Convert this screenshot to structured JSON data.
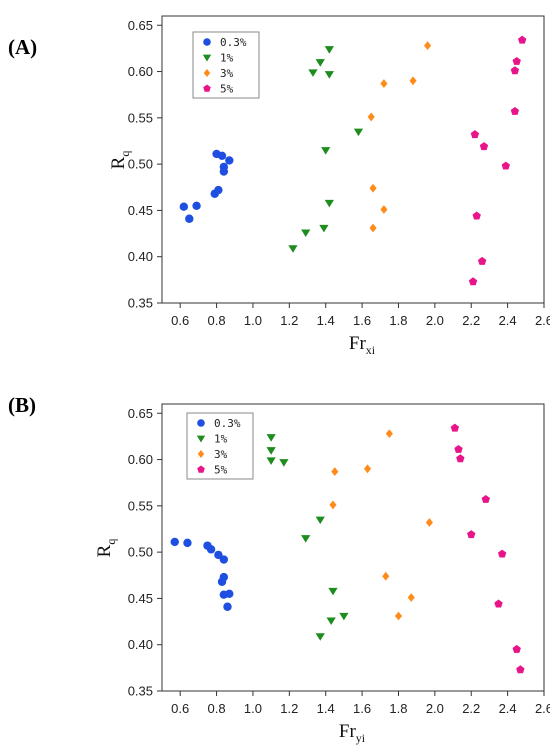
{
  "chart_data": [
    {
      "type": "scatter",
      "panel_label": "(A)",
      "ylabel": "R",
      "ylabel_sub": "q",
      "xlabel": "Fr",
      "xlabel_sub": "xi",
      "xlim": [
        0.5,
        2.6
      ],
      "ylim": [
        0.35,
        0.66
      ],
      "xticks": [
        0.6,
        0.8,
        1.0,
        1.2,
        1.4,
        1.6,
        1.8,
        2.0,
        2.2,
        2.4,
        2.6
      ],
      "xtick_labels": [
        "0.6",
        "0.8",
        "1.0",
        "1.2",
        "1.4",
        "1.6",
        "1.8",
        "2.0",
        "2.2",
        "2.4",
        "2.6"
      ],
      "yticks": [
        0.35,
        0.4,
        0.45,
        0.5,
        0.55,
        0.6,
        0.65
      ],
      "ytick_labels": [
        "0.35",
        "0.40",
        "0.45",
        "0.50",
        "0.55",
        "0.60",
        "0.65"
      ],
      "legend_position": "top-left",
      "series": [
        {
          "name": "0.3%",
          "marker": "circle",
          "color": "#1f4fe0",
          "points": [
            [
              0.62,
              0.454
            ],
            [
              0.65,
              0.441
            ],
            [
              0.69,
              0.455
            ],
            [
              0.79,
              0.468
            ],
            [
              0.81,
              0.472
            ],
            [
              0.8,
              0.511
            ],
            [
              0.83,
              0.509
            ],
            [
              0.84,
              0.497
            ],
            [
              0.84,
              0.492
            ],
            [
              0.87,
              0.504
            ]
          ]
        },
        {
          "name": "1%",
          "marker": "triangle-down",
          "color": "#1e8c1e",
          "points": [
            [
              1.22,
              0.409
            ],
            [
              1.29,
              0.426
            ],
            [
              1.39,
              0.431
            ],
            [
              1.42,
              0.458
            ],
            [
              1.4,
              0.515
            ],
            [
              1.58,
              0.535
            ],
            [
              1.33,
              0.599
            ],
            [
              1.37,
              0.61
            ],
            [
              1.42,
              0.597
            ],
            [
              1.42,
              0.624
            ]
          ]
        },
        {
          "name": "3%",
          "marker": "diamond",
          "color": "#ff8c1a",
          "points": [
            [
              1.66,
              0.431
            ],
            [
              1.72,
              0.451
            ],
            [
              1.66,
              0.474
            ],
            [
              1.65,
              0.551
            ],
            [
              1.72,
              0.587
            ],
            [
              1.88,
              0.59
            ],
            [
              1.96,
              0.628
            ]
          ]
        },
        {
          "name": "5%",
          "marker": "pentagon",
          "color": "#e8158a",
          "points": [
            [
              2.21,
              0.373
            ],
            [
              2.26,
              0.395
            ],
            [
              2.23,
              0.444
            ],
            [
              2.39,
              0.498
            ],
            [
              2.27,
              0.519
            ],
            [
              2.22,
              0.532
            ],
            [
              2.44,
              0.557
            ],
            [
              2.44,
              0.601
            ],
            [
              2.45,
              0.611
            ],
            [
              2.48,
              0.634
            ]
          ]
        }
      ]
    },
    {
      "type": "scatter",
      "panel_label": "(B)",
      "ylabel": "R",
      "ylabel_sub": "q",
      "xlabel": "Fr",
      "xlabel_sub": "yi",
      "xlim": [
        0.5,
        2.6
      ],
      "ylim": [
        0.35,
        0.66
      ],
      "xticks": [
        0.6,
        0.8,
        1.0,
        1.2,
        1.4,
        1.6,
        1.8,
        2.0,
        2.2,
        2.4,
        2.6
      ],
      "xtick_labels": [
        "0.6",
        "0.8",
        "1.0",
        "1.2",
        "1.4",
        "1.6",
        "1.8",
        "2.0",
        "2.2",
        "2.4",
        "2.6"
      ],
      "yticks": [
        0.35,
        0.4,
        0.45,
        0.5,
        0.55,
        0.6,
        0.65
      ],
      "ytick_labels": [
        "0.35",
        "0.40",
        "0.45",
        "0.50",
        "0.55",
        "0.60",
        "0.65"
      ],
      "legend_position": "top-left",
      "series": [
        {
          "name": "0.3%",
          "marker": "circle",
          "color": "#1f4fe0",
          "points": [
            [
              0.57,
              0.511
            ],
            [
              0.64,
              0.51
            ],
            [
              0.75,
              0.507
            ],
            [
              0.77,
              0.503
            ],
            [
              0.81,
              0.497
            ],
            [
              0.84,
              0.492
            ],
            [
              0.84,
              0.473
            ],
            [
              0.83,
              0.468
            ],
            [
              0.84,
              0.454
            ],
            [
              0.87,
              0.455
            ],
            [
              0.86,
              0.441
            ]
          ]
        },
        {
          "name": "1%",
          "marker": "triangle-down",
          "color": "#1e8c1e",
          "points": [
            [
              1.1,
              0.624
            ],
            [
              1.1,
              0.61
            ],
            [
              1.1,
              0.599
            ],
            [
              1.17,
              0.597
            ],
            [
              1.29,
              0.515
            ],
            [
              1.37,
              0.535
            ],
            [
              1.44,
              0.458
            ],
            [
              1.5,
              0.431
            ],
            [
              1.43,
              0.426
            ],
            [
              1.37,
              0.409
            ]
          ]
        },
        {
          "name": "3%",
          "marker": "diamond",
          "color": "#ff8c1a",
          "points": [
            [
              1.75,
              0.628
            ],
            [
              1.63,
              0.59
            ],
            [
              1.45,
              0.587
            ],
            [
              1.44,
              0.551
            ],
            [
              1.97,
              0.532
            ],
            [
              1.73,
              0.474
            ],
            [
              1.87,
              0.451
            ],
            [
              1.8,
              0.431
            ]
          ]
        },
        {
          "name": "5%",
          "marker": "pentagon",
          "color": "#e8158a",
          "points": [
            [
              2.11,
              0.634
            ],
            [
              2.13,
              0.611
            ],
            [
              2.14,
              0.601
            ],
            [
              2.28,
              0.557
            ],
            [
              2.2,
              0.519
            ],
            [
              2.37,
              0.498
            ],
            [
              2.35,
              0.444
            ],
            [
              2.45,
              0.395
            ],
            [
              2.47,
              0.373
            ]
          ]
        }
      ]
    }
  ]
}
